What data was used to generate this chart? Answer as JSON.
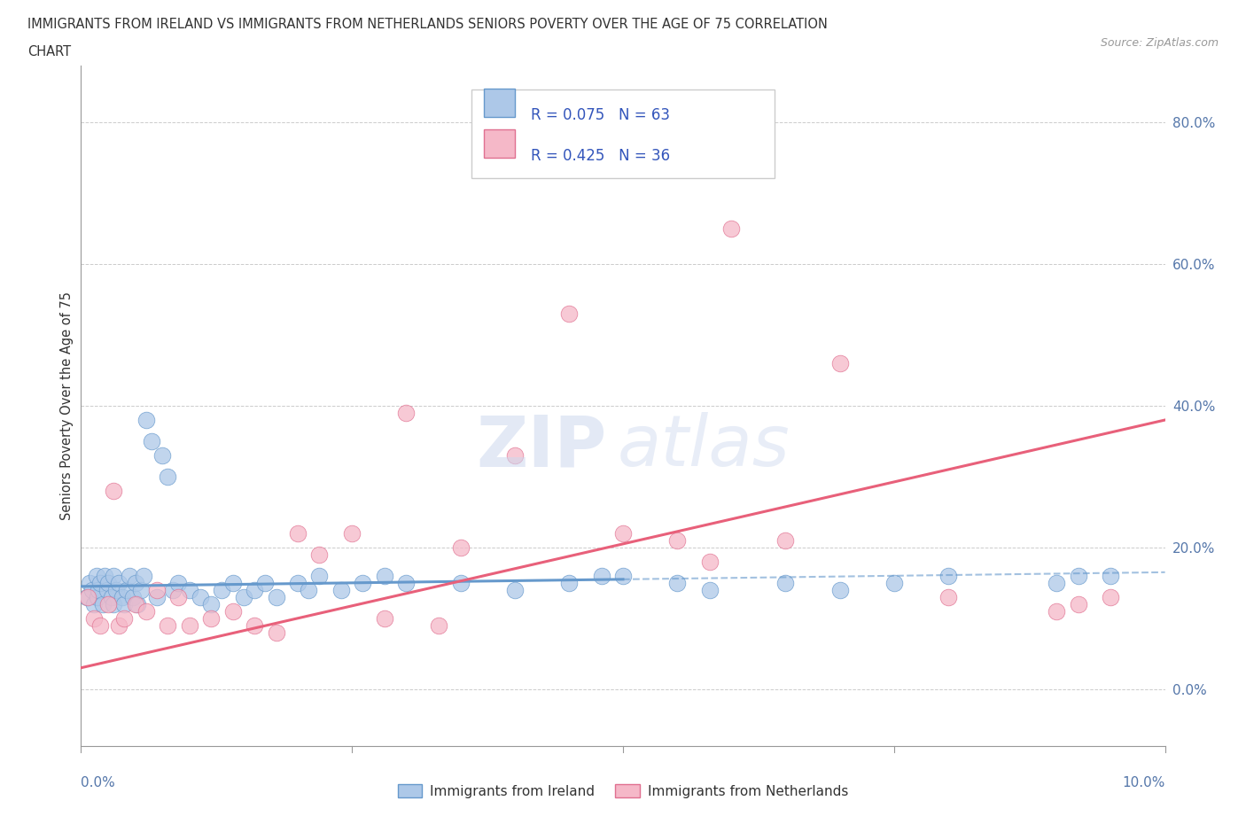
{
  "title_line1": "IMMIGRANTS FROM IRELAND VS IMMIGRANTS FROM NETHERLANDS SENIORS POVERTY OVER THE AGE OF 75 CORRELATION",
  "title_line2": "CHART",
  "source": "Source: ZipAtlas.com",
  "ylabel": "Seniors Poverty Over the Age of 75",
  "xlim": [
    0.0,
    10.0
  ],
  "ylim": [
    -8.0,
    88.0
  ],
  "legend_ireland": "Immigrants from Ireland",
  "legend_netherlands": "Immigrants from Netherlands",
  "R_ireland": "R = 0.075",
  "N_ireland": "N = 63",
  "R_netherlands": "R = 0.425",
  "N_netherlands": "N = 36",
  "color_ireland_fill": "#adc8e8",
  "color_ireland_edge": "#6699cc",
  "color_netherlands_fill": "#f5b8c8",
  "color_netherlands_edge": "#e07090",
  "color_ireland_line": "#6699cc",
  "color_netherlands_line": "#e8607a",
  "color_text_blue": "#3355bb",
  "color_axis_label": "#5577aa",
  "color_grid": "#cccccc",
  "color_title": "#333333",
  "color_source": "#999999",
  "ytick_positions": [
    0,
    20,
    40,
    60,
    80
  ],
  "ytick_labels": [
    "0.0%",
    "20.0%",
    "40.0%",
    "60.0%",
    "80.0%"
  ],
  "xtick_labels": [
    "0.0%",
    "10.0%"
  ],
  "ireland_x": [
    0.05,
    0.08,
    0.1,
    0.12,
    0.14,
    0.15,
    0.16,
    0.18,
    0.2,
    0.22,
    0.24,
    0.25,
    0.28,
    0.3,
    0.3,
    0.32,
    0.35,
    0.38,
    0.4,
    0.42,
    0.45,
    0.48,
    0.5,
    0.52,
    0.55,
    0.58,
    0.6,
    0.65,
    0.7,
    0.75,
    0.8,
    0.85,
    0.9,
    1.0,
    1.1,
    1.2,
    1.3,
    1.4,
    1.5,
    1.6,
    1.7,
    1.8,
    2.0,
    2.1,
    2.2,
    2.4,
    2.6,
    2.8,
    3.0,
    3.5,
    4.0,
    4.5,
    4.8,
    5.0,
    5.5,
    5.8,
    6.5,
    7.0,
    7.5,
    8.0,
    9.0,
    9.2,
    9.5
  ],
  "ireland_y": [
    13,
    15,
    14,
    12,
    16,
    13,
    14,
    15,
    12,
    16,
    14,
    15,
    13,
    12,
    16,
    14,
    15,
    13,
    12,
    14,
    16,
    13,
    15,
    12,
    14,
    16,
    38,
    35,
    13,
    33,
    30,
    14,
    15,
    14,
    13,
    12,
    14,
    15,
    13,
    14,
    15,
    13,
    15,
    14,
    16,
    14,
    15,
    16,
    15,
    15,
    14,
    15,
    16,
    16,
    15,
    14,
    15,
    14,
    15,
    16,
    15,
    16,
    16
  ],
  "netherlands_x": [
    0.06,
    0.12,
    0.18,
    0.25,
    0.3,
    0.35,
    0.4,
    0.5,
    0.6,
    0.7,
    0.8,
    0.9,
    1.0,
    1.2,
    1.4,
    1.6,
    1.8,
    2.0,
    2.2,
    2.5,
    2.8,
    3.0,
    3.3,
    3.5,
    4.0,
    4.5,
    5.0,
    5.5,
    5.8,
    6.0,
    6.5,
    7.0,
    8.0,
    9.0,
    9.2,
    9.5
  ],
  "netherlands_y": [
    13,
    10,
    9,
    12,
    28,
    9,
    10,
    12,
    11,
    14,
    9,
    13,
    9,
    10,
    11,
    9,
    8,
    22,
    19,
    22,
    10,
    39,
    9,
    20,
    33,
    53,
    22,
    21,
    18,
    65,
    21,
    46,
    13,
    11,
    12,
    13
  ],
  "ireland_trend_x0": 0.0,
  "ireland_trend_y0": 14.5,
  "ireland_trend_x1": 5.0,
  "ireland_trend_y1": 15.5,
  "ireland_dash_x0": 5.0,
  "ireland_dash_x1": 10.0,
  "ireland_dash_y0": 15.5,
  "ireland_dash_y1": 16.5,
  "netherlands_trend_x0": 0.0,
  "netherlands_trend_y0": 3.0,
  "netherlands_trend_x1": 10.0,
  "netherlands_trend_y1": 38.0,
  "watermark_zip": "ZIP",
  "watermark_atlas": "atlas"
}
